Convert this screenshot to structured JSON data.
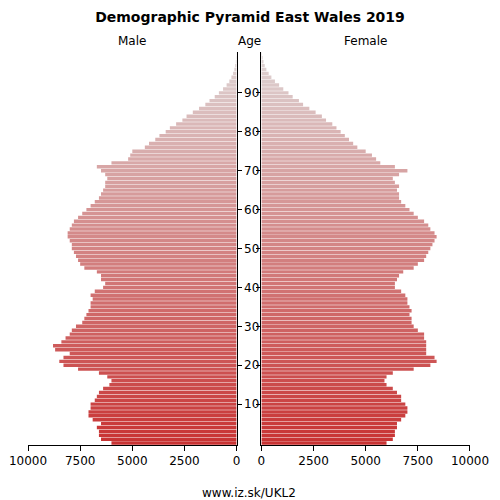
{
  "chart_data": {
    "type": "bar",
    "orientation": "horizontal",
    "title": "Demographic Pyramid East Wales 2019",
    "y_label": "Age",
    "annotations": [
      "www.iz.sk/UKL2"
    ],
    "y": [
      0,
      1,
      2,
      3,
      4,
      5,
      6,
      7,
      8,
      9,
      10,
      11,
      12,
      13,
      14,
      15,
      16,
      17,
      18,
      19,
      20,
      21,
      22,
      23,
      24,
      25,
      26,
      27,
      28,
      29,
      30,
      31,
      32,
      33,
      34,
      35,
      36,
      37,
      38,
      39,
      40,
      41,
      42,
      43,
      44,
      45,
      46,
      47,
      48,
      49,
      50,
      51,
      52,
      53,
      54,
      55,
      56,
      57,
      58,
      59,
      60,
      61,
      62,
      63,
      64,
      65,
      66,
      67,
      68,
      69,
      70,
      71,
      72,
      73,
      74,
      75,
      76,
      77,
      78,
      79,
      80,
      81,
      82,
      83,
      84,
      85,
      86,
      87,
      88,
      89,
      90,
      91,
      92,
      93,
      94,
      95,
      96,
      97,
      98,
      99,
      100
    ],
    "series": [
      {
        "name": "Male",
        "color": "#c83232",
        "values": [
          6000,
          6500,
          6600,
          6600,
          6700,
          6500,
          6900,
          7100,
          7100,
          7000,
          7000,
          6800,
          6700,
          6600,
          6400,
          6100,
          6000,
          6200,
          6600,
          7600,
          8300,
          8500,
          8300,
          8000,
          8700,
          8800,
          8400,
          8200,
          8000,
          7900,
          7700,
          7400,
          7300,
          7200,
          7100,
          7000,
          7000,
          6900,
          7000,
          6800,
          6400,
          6300,
          6500,
          6500,
          6700,
          7300,
          7500,
          7600,
          7700,
          7800,
          7900,
          7900,
          8000,
          8100,
          8100,
          8000,
          7900,
          7800,
          7600,
          7400,
          7200,
          7000,
          6800,
          6600,
          6500,
          6400,
          6300,
          6300,
          6200,
          6300,
          6500,
          6700,
          6000,
          5200,
          5100,
          5000,
          4400,
          4200,
          3900,
          3700,
          3400,
          3200,
          2900,
          2600,
          2400,
          2100,
          1800,
          1500,
          1300,
          1050,
          850,
          650,
          480,
          350,
          250,
          170,
          110,
          70,
          40,
          20,
          10
        ]
      },
      {
        "name": "Female",
        "color": "#c83232",
        "values": [
          6000,
          6300,
          6400,
          6400,
          6500,
          6500,
          6700,
          6900,
          7000,
          7000,
          6900,
          6700,
          6700,
          6500,
          6300,
          6000,
          5900,
          6000,
          6300,
          7300,
          8100,
          8400,
          8300,
          7900,
          7900,
          7900,
          7900,
          7800,
          7800,
          7500,
          7300,
          7200,
          7200,
          7100,
          7200,
          7100,
          7000,
          7000,
          6900,
          6700,
          6400,
          6400,
          6500,
          6600,
          6800,
          7300,
          7500,
          7800,
          7900,
          8000,
          8100,
          8200,
          8300,
          8400,
          8300,
          8100,
          8000,
          7800,
          7500,
          7300,
          7100,
          6900,
          6700,
          6600,
          6600,
          6500,
          6600,
          6400,
          6300,
          6600,
          7000,
          6400,
          5700,
          5500,
          5300,
          5000,
          4600,
          4400,
          4200,
          4000,
          3800,
          3600,
          3400,
          3100,
          2900,
          2600,
          2300,
          2000,
          1800,
          1500,
          1300,
          1050,
          850,
          650,
          480,
          350,
          240,
          160,
          100,
          60,
          30
        ]
      }
    ],
    "xlim": [
      0,
      10000
    ],
    "xticks": [
      0,
      2500,
      5000,
      7500,
      10000
    ],
    "ylim": [
      -0.5,
      100.5
    ],
    "yticks": [
      10,
      20,
      30,
      40,
      50,
      60,
      70,
      80,
      90
    ],
    "grid": false
  }
}
